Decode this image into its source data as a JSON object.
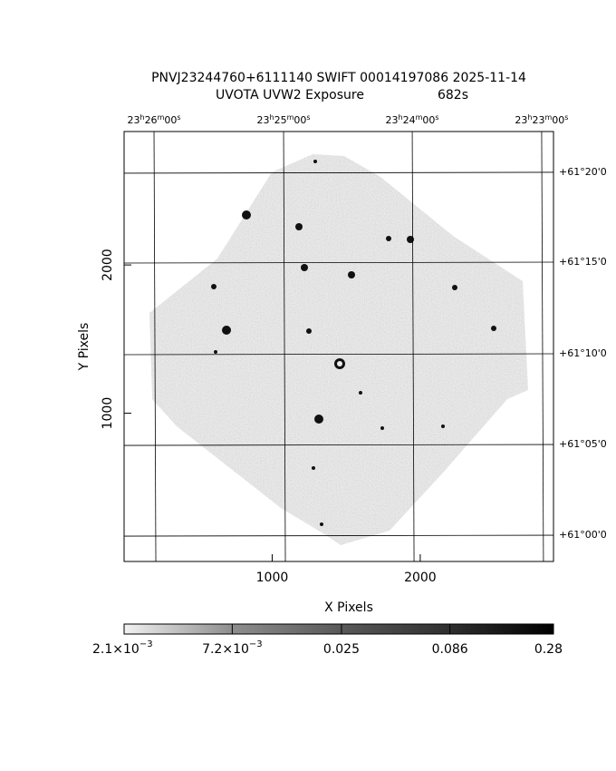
{
  "chart_data": {
    "type": "image",
    "title": "PNVJ23244760+6111140 SWIFT 00014197086 2025-11-14",
    "subtitle": "UVOTA UVW2 Exposure",
    "exposure": "682s",
    "x_label": "X Pixels",
    "y_label": "Y Pixels",
    "xlim": [
      0,
      2900
    ],
    "ylim": [
      0,
      2900
    ],
    "xticks": [
      1000,
      2000
    ],
    "yticks": [
      1000,
      2000
    ],
    "ra_ticks": [
      {
        "value": 202,
        "h": "23",
        "m": "26",
        "s": "00"
      },
      {
        "value": 1077,
        "h": "23",
        "m": "25",
        "s": "00"
      },
      {
        "value": 1946,
        "h": "23",
        "m": "24",
        "s": "00"
      },
      {
        "value": 2820,
        "h": "23",
        "m": "23",
        "s": "00"
      }
    ],
    "ra_units": [
      "h",
      "m",
      "s"
    ],
    "dec_ticks": [
      {
        "value": 2625,
        "label": "+61°20'0"
      },
      {
        "value": 2019,
        "label": "+61°15'0"
      },
      {
        "value": 1401,
        "label": "+61°10'0"
      },
      {
        "value": 789,
        "label": "+61°05'0"
      },
      {
        "value": 177,
        "label": "+61°00'0"
      }
    ],
    "colorbar": {
      "log": true,
      "lim": [
        0.0021,
        0.28
      ],
      "ticks": [
        {
          "value": 0.0021,
          "label": "2.1×10",
          "exp": "−3"
        },
        {
          "value": 0.0072,
          "label": "7.2×10",
          "exp": "−3"
        },
        {
          "value": 0.025,
          "label": "0.025"
        },
        {
          "value": 0.086,
          "label": "0.086"
        },
        {
          "value": 0.28,
          "label": "0.28"
        }
      ]
    }
  }
}
